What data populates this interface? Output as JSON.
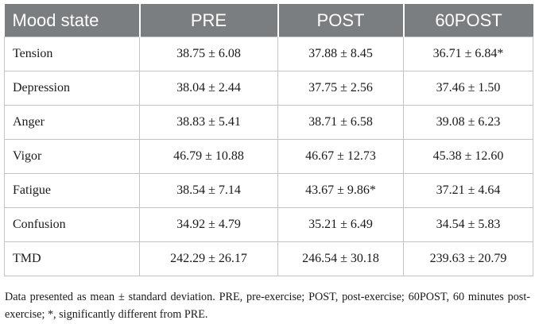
{
  "table": {
    "headers": [
      "Mood state",
      "PRE",
      "POST",
      "60POST"
    ],
    "rows": [
      [
        "Tension",
        "38.75 ± 6.08",
        "37.88 ± 8.45",
        "36.71 ± 6.84*"
      ],
      [
        "Depression",
        "38.04 ± 2.44",
        "37.75 ± 2.56",
        "37.46 ± 1.50"
      ],
      [
        "Anger",
        "38.83 ± 5.41",
        "38.71 ± 6.58",
        "39.08 ± 6.23"
      ],
      [
        "Vigor",
        "46.79 ± 10.88",
        "46.67 ± 12.73",
        "45.38 ± 12.60"
      ],
      [
        "Fatigue",
        "38.54 ± 7.14",
        "43.67 ± 9.86*",
        "37.21 ± 4.64"
      ],
      [
        "Confusion",
        "34.92 ± 4.79",
        "35.21 ± 6.49",
        "34.54 ± 5.83"
      ],
      [
        "TMD",
        "242.29 ± 26.17",
        "246.54 ± 30.18",
        "239.63 ± 20.79"
      ]
    ]
  },
  "footnote": "Data presented as mean ± standard deviation. PRE, pre-exercise; POST, post-exercise; 60POST, 60 minutes post-exercise; *, significantly different from PRE.",
  "colors": {
    "header_bg": "#7b7e81",
    "header_text": "#ffffff",
    "grid": "#c4c4c4"
  }
}
